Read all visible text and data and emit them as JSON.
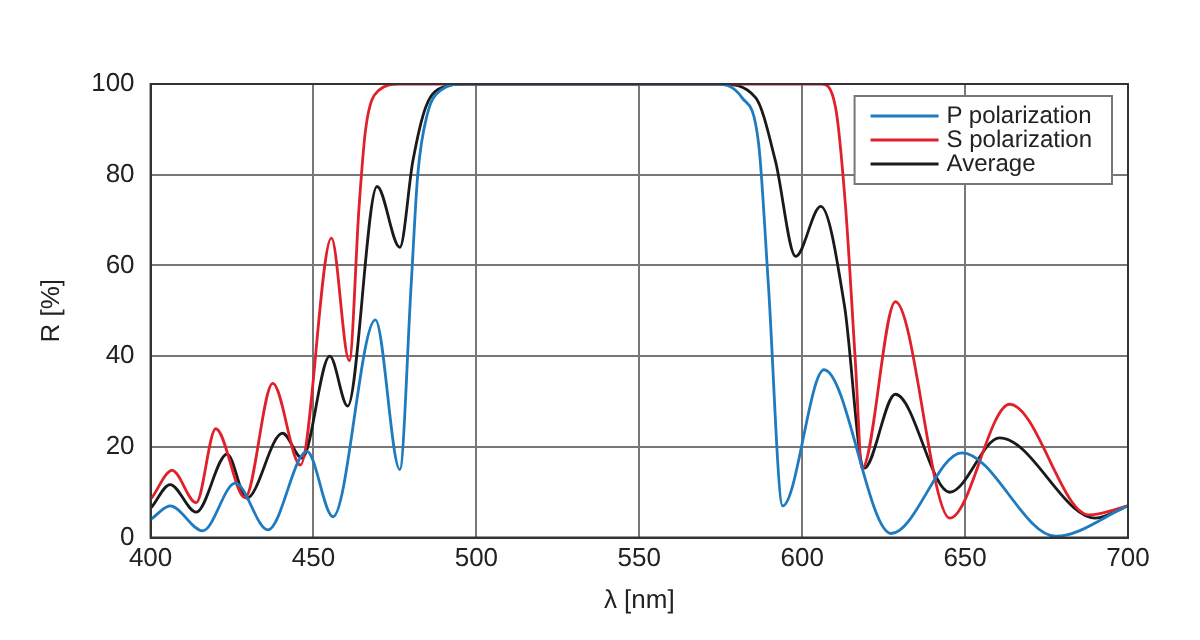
{
  "chart_data": {
    "type": "line",
    "xlabel": "λ [nm]",
    "ylabel": "R [%]",
    "xlim": [
      400,
      700
    ],
    "xticks": [
      400,
      450,
      500,
      550,
      600,
      650,
      700
    ],
    "ylim": [
      0,
      100
    ],
    "yticks": [
      0,
      20,
      40,
      60,
      80,
      100
    ],
    "grid": true,
    "legend": "top right",
    "marker": "none",
    "line_style": "solid",
    "series": [
      {
        "name": "P polarization",
        "color": "#1f7bbf",
        "x": [
          400.4,
          406,
          416,
          426,
          436,
          448,
          456,
          469,
          476.5,
          480,
          482,
          485,
          489,
          496,
          573.5,
          581.5,
          586.6,
          589.6,
          594,
          606.7,
          627.3,
          649,
          677.8,
          700
        ],
        "values": [
          4.2,
          7,
          1.5,
          12,
          1.7,
          19,
          4.6,
          48,
          15,
          56,
          80,
          93.5,
          98.6,
          100,
          100,
          97,
          87,
          56,
          7,
          37,
          0.9,
          18.7,
          0.3,
          7
        ]
      },
      {
        "name": "S polarization",
        "color": "#e0202a",
        "x": [
          400.4,
          406.6,
          414,
          420,
          429,
          437.5,
          446,
          455.5,
          461,
          464,
          466,
          470,
          476.5,
          606,
          610.2,
          613.3,
          616.3,
          618.4,
          628.6,
          645.3,
          663.7,
          688,
          700
        ],
        "values": [
          8.8,
          14.8,
          7.7,
          24,
          8.8,
          34,
          16,
          66,
          39,
          73,
          90,
          98.6,
          100,
          100,
          95,
          73,
          39,
          15.3,
          52,
          4.3,
          29.4,
          5,
          7
        ]
      },
      {
        "name": "Average",
        "color": "#1a1a1a",
        "x": [
          400.4,
          406,
          414,
          423.5,
          429.5,
          440.5,
          446.5,
          455,
          460.5,
          469.5,
          476.5,
          480.5,
          484.5,
          490.5,
          496,
          575,
          585.7,
          591.8,
          598,
          605.7,
          613,
          619,
          628.6,
          645.3,
          660.6,
          690,
          700
        ],
        "values": [
          6.8,
          11.7,
          5.6,
          18.4,
          8.7,
          23,
          17.5,
          40,
          29,
          77.4,
          64,
          83,
          95,
          99.5,
          100,
          100,
          97,
          83,
          62,
          73,
          51,
          15.3,
          31.6,
          10,
          22,
          4.3,
          7
        ]
      }
    ]
  }
}
